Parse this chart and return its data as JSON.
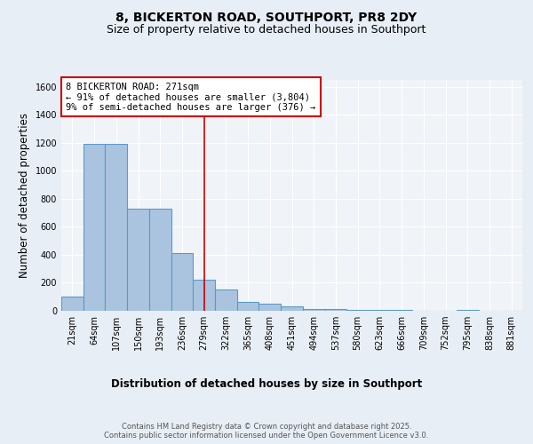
{
  "title1": "8, BICKERTON ROAD, SOUTHPORT, PR8 2DY",
  "title2": "Size of property relative to detached houses in Southport",
  "xlabel": "Distribution of detached houses by size in Southport",
  "ylabel": "Number of detached properties",
  "categories": [
    "21sqm",
    "64sqm",
    "107sqm",
    "150sqm",
    "193sqm",
    "236sqm",
    "279sqm",
    "322sqm",
    "365sqm",
    "408sqm",
    "451sqm",
    "494sqm",
    "537sqm",
    "580sqm",
    "623sqm",
    "666sqm",
    "709sqm",
    "752sqm",
    "795sqm",
    "838sqm",
    "881sqm"
  ],
  "values": [
    100,
    1190,
    1190,
    730,
    730,
    410,
    225,
    150,
    65,
    50,
    30,
    10,
    10,
    8,
    5,
    5,
    2,
    0,
    5,
    0,
    0
  ],
  "bar_color": "#aac4e0",
  "bar_edge_color": "#5a9ac9",
  "bar_linewidth": 0.8,
  "red_line_index": 6,
  "annotation_text": "8 BICKERTON ROAD: 271sqm\n← 91% of detached houses are smaller (3,804)\n9% of semi-detached houses are larger (376) →",
  "annotation_box_color": "#ffffff",
  "annotation_border_color": "#cc0000",
  "ylim": [
    0,
    1650
  ],
  "yticks": [
    0,
    200,
    400,
    600,
    800,
    1000,
    1200,
    1400,
    1600
  ],
  "bg_color": "#e8eef5",
  "plot_bg_color": "#f0f4f8",
  "grid_color": "#ffffff",
  "footer_text": "Contains HM Land Registry data © Crown copyright and database right 2025.\nContains public sector information licensed under the Open Government Licence v3.0.",
  "title_fontsize": 10,
  "subtitle_fontsize": 9,
  "label_fontsize": 8.5,
  "tick_fontsize": 7,
  "annotation_fontsize": 7.5
}
